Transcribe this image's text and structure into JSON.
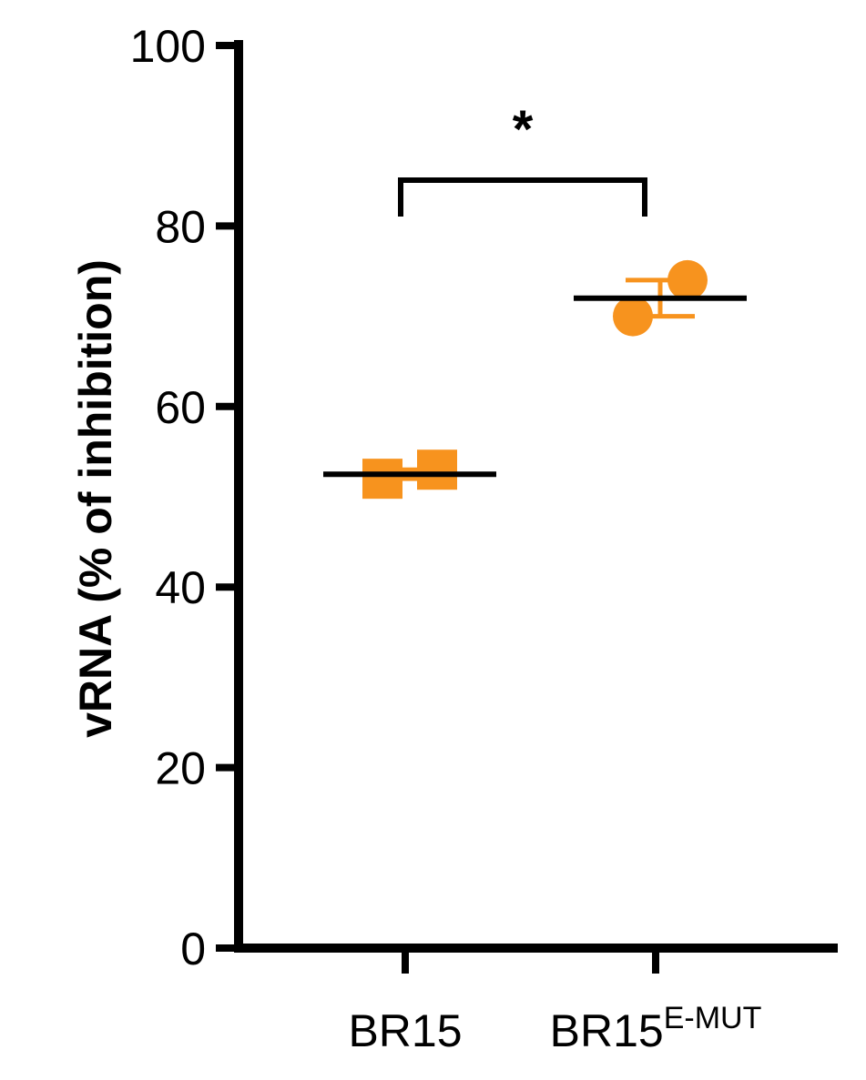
{
  "chart_data": {
    "type": "scatter",
    "ylabel": "vRNA (% of inhibition)",
    "ylim": [
      0,
      100
    ],
    "yticks": [
      0,
      20,
      40,
      60,
      80,
      100
    ],
    "categories": [
      {
        "base": "BR15",
        "sup": ""
      },
      {
        "base": "BR15",
        "sup": "E-MUT"
      }
    ],
    "groups": [
      {
        "category_index": 0,
        "marker": "square",
        "color": "#F7931E",
        "points": [
          52.0,
          53.0
        ],
        "mean": 52.5,
        "error": [
          52.0,
          53.0
        ]
      },
      {
        "category_index": 1,
        "marker": "circle",
        "color": "#F7931E",
        "points": [
          70.0,
          74.0
        ],
        "mean": 72.0,
        "error": [
          70.0,
          74.0
        ]
      }
    ],
    "significance": {
      "label": "*",
      "from": 0,
      "to": 1
    },
    "colors": {
      "axis": "#000000",
      "mean_line": "#000000",
      "points": "#F7931E"
    }
  }
}
